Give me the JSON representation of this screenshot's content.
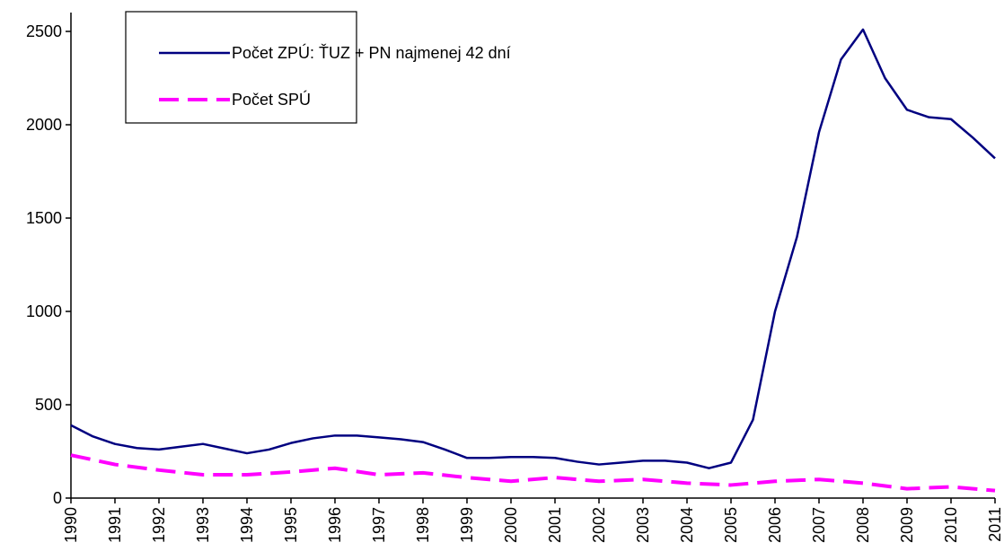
{
  "chart_data": {
    "type": "line",
    "xlim": [
      1990,
      2011
    ],
    "xticks": [
      1990,
      1991,
      1992,
      1993,
      1994,
      1995,
      1996,
      1997,
      1998,
      1999,
      2000,
      2001,
      2002,
      2003,
      2004,
      2005,
      2006,
      2007,
      2008,
      2009,
      2010,
      2011
    ],
    "ylim": [
      0,
      2500
    ],
    "yticks": [
      0,
      500,
      1000,
      1500,
      2000,
      2500
    ],
    "grid": false,
    "legend": "upper left",
    "series": [
      {
        "name": "Počet ZPÚ: ŤUZ + PN najmenej 42 dní",
        "color": "#000080",
        "dash": false,
        "x": [
          1990,
          1990.5,
          1991,
          1991.5,
          1992,
          1992.5,
          1993,
          1993.5,
          1994,
          1994.5,
          1995,
          1995.5,
          1996,
          1996.5,
          1997,
          1997.5,
          1998,
          1998.5,
          1999,
          1999.5,
          2000,
          2000.5,
          2001,
          2001.5,
          2002,
          2002.5,
          2003,
          2003.5,
          2004,
          2004.5,
          2005,
          2005.5,
          2006,
          2006.5,
          2007,
          2007.5,
          2008,
          2008.5,
          2009,
          2009.5,
          2010,
          2010.5,
          2011
        ],
        "values": [
          390,
          330,
          290,
          268,
          260,
          275,
          290,
          265,
          240,
          260,
          295,
          320,
          335,
          335,
          325,
          315,
          300,
          260,
          215,
          215,
          220,
          220,
          215,
          195,
          180,
          190,
          200,
          200,
          190,
          160,
          190,
          420,
          1000,
          1400,
          1960,
          2350,
          2510,
          2250,
          2080,
          2040,
          2030,
          1930,
          1820
        ]
      },
      {
        "name": "Počet SPÚ",
        "color": "#ff00ff",
        "dash": true,
        "x": [
          1990,
          1991,
          1992,
          1993,
          1994,
          1995,
          1996,
          1997,
          1998,
          1999,
          2000,
          2001,
          2002,
          2003,
          2004,
          2005,
          2006,
          2007,
          2008,
          2009,
          2010,
          2011
        ],
        "values": [
          230,
          180,
          150,
          125,
          125,
          140,
          160,
          125,
          135,
          110,
          90,
          110,
          90,
          100,
          80,
          70,
          90,
          100,
          80,
          50,
          60,
          40
        ]
      }
    ]
  }
}
